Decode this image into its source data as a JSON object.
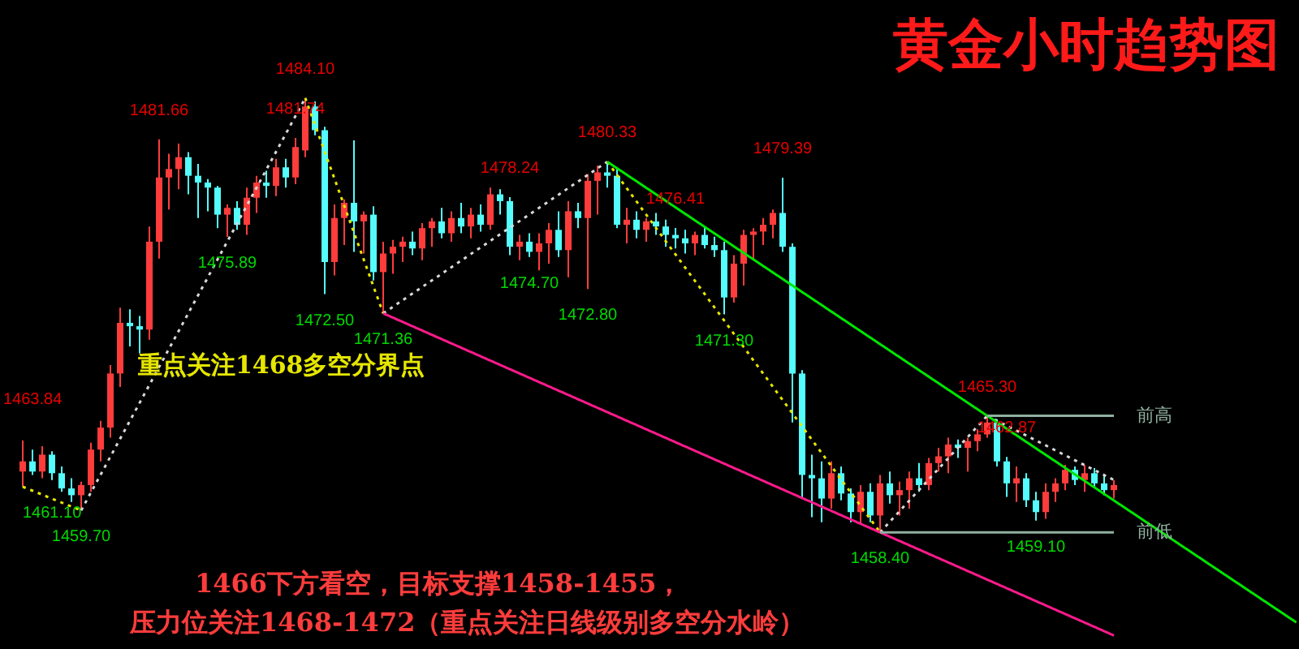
{
  "chart_data": {
    "type": "candlestick",
    "title": "黄金小时趋势图",
    "categories": [
      null,
      null,
      null,
      null,
      null,
      null,
      null,
      null,
      null,
      null,
      null,
      null,
      null,
      null,
      null,
      null,
      null,
      null,
      null,
      null,
      null,
      null,
      null,
      null,
      null,
      null,
      null,
      null,
      null,
      null,
      null,
      null,
      null,
      null,
      null,
      null,
      null,
      null,
      null,
      null,
      null,
      null,
      null,
      null,
      null,
      null,
      null,
      null,
      null,
      null,
      null,
      null,
      null,
      null,
      null,
      null,
      null,
      null,
      null,
      null,
      null,
      null,
      null,
      null,
      null,
      null,
      null,
      null,
      null,
      null,
      null,
      null,
      null,
      null,
      null,
      null,
      null,
      null,
      null,
      null,
      null,
      null,
      null,
      null,
      null,
      null,
      null,
      null,
      null,
      null,
      null,
      null,
      null,
      null,
      null,
      null,
      null,
      null,
      null,
      null,
      null,
      null,
      null,
      null,
      null,
      null,
      null,
      null,
      null,
      null,
      null,
      null,
      null
    ],
    "ohlc": [
      [
        1462.0,
        1463.84,
        1461.1,
        1462.6
      ],
      [
        1462.6,
        1463.3,
        1461.8,
        1462.0
      ],
      [
        1462.0,
        1463.5,
        1461.6,
        1463.0
      ],
      [
        1463.0,
        1463.2,
        1461.5,
        1461.9
      ],
      [
        1461.9,
        1462.3,
        1460.8,
        1461.0
      ],
      [
        1461.0,
        1461.6,
        1460.2,
        1460.6
      ],
      [
        1460.6,
        1461.4,
        1459.7,
        1461.2
      ],
      [
        1461.2,
        1463.7,
        1460.8,
        1463.3
      ],
      [
        1463.3,
        1465.0,
        1462.6,
        1464.6
      ],
      [
        1464.6,
        1468.3,
        1464.0,
        1467.8
      ],
      [
        1467.8,
        1471.7,
        1467.0,
        1470.8
      ],
      [
        1470.8,
        1471.6,
        1469.4,
        1470.6
      ],
      [
        1470.6,
        1471.2,
        1469.0,
        1470.4
      ],
      [
        1470.4,
        1476.5,
        1469.8,
        1475.6
      ],
      [
        1475.6,
        1481.66,
        1474.6,
        1479.4
      ],
      [
        1479.4,
        1480.8,
        1477.5,
        1479.9
      ],
      [
        1479.9,
        1481.4,
        1478.7,
        1480.6
      ],
      [
        1480.6,
        1480.9,
        1478.4,
        1479.5
      ],
      [
        1479.5,
        1480.2,
        1477.0,
        1479.1
      ],
      [
        1479.1,
        1479.3,
        1477.4,
        1478.8
      ],
      [
        1478.8,
        1478.9,
        1476.4,
        1477.2
      ],
      [
        1477.2,
        1477.8,
        1475.89,
        1477.6
      ],
      [
        1477.6,
        1478.0,
        1476.3,
        1476.6
      ],
      [
        1476.6,
        1478.8,
        1476.0,
        1478.2
      ],
      [
        1478.2,
        1479.5,
        1477.3,
        1479.1
      ],
      [
        1479.1,
        1479.8,
        1478.2,
        1478.9
      ],
      [
        1478.9,
        1480.5,
        1478.3,
        1480.0
      ],
      [
        1480.0,
        1480.5,
        1478.8,
        1479.4
      ],
      [
        1479.4,
        1481.74,
        1479.0,
        1481.2
      ],
      [
        1481.0,
        1484.1,
        1480.6,
        1483.6
      ],
      [
        1483.6,
        1483.9,
        1481.9,
        1482.2
      ],
      [
        1482.2,
        1482.4,
        1472.5,
        1474.4
      ],
      [
        1474.4,
        1477.8,
        1473.6,
        1477.0
      ],
      [
        1477.0,
        1478.1,
        1475.4,
        1477.9
      ],
      [
        1477.9,
        1481.6,
        1475.0,
        1476.8
      ],
      [
        1476.8,
        1477.4,
        1474.9,
        1477.2
      ],
      [
        1477.2,
        1477.7,
        1473.3,
        1473.8
      ],
      [
        1473.8,
        1475.6,
        1471.36,
        1474.9
      ],
      [
        1474.9,
        1475.7,
        1473.7,
        1475.3
      ],
      [
        1475.3,
        1475.9,
        1474.4,
        1475.6
      ],
      [
        1475.6,
        1476.2,
        1474.8,
        1475.2
      ],
      [
        1475.2,
        1476.7,
        1474.5,
        1476.4
      ],
      [
        1476.4,
        1477.0,
        1475.3,
        1476.8
      ],
      [
        1476.8,
        1477.6,
        1475.8,
        1476.1
      ],
      [
        1476.1,
        1477.4,
        1475.6,
        1477.0
      ],
      [
        1477.0,
        1477.9,
        1476.1,
        1476.5
      ],
      [
        1476.5,
        1477.6,
        1475.8,
        1477.2
      ],
      [
        1477.2,
        1477.8,
        1476.2,
        1476.6
      ],
      [
        1476.6,
        1478.8,
        1476.3,
        1478.4
      ],
      [
        1478.4,
        1478.7,
        1477.2,
        1478.0
      ],
      [
        1478.0,
        1478.24,
        1474.8,
        1475.3
      ],
      [
        1475.3,
        1476.0,
        1474.5,
        1475.6
      ],
      [
        1475.6,
        1476.1,
        1474.7,
        1475.0
      ],
      [
        1475.0,
        1476.1,
        1473.9,
        1475.5
      ],
      [
        1475.5,
        1476.7,
        1474.3,
        1476.3
      ],
      [
        1476.3,
        1477.4,
        1474.7,
        1475.1
      ],
      [
        1475.1,
        1478.0,
        1473.5,
        1477.4
      ],
      [
        1477.4,
        1477.9,
        1476.4,
        1477.0
      ],
      [
        1477.0,
        1479.6,
        1472.8,
        1479.2
      ],
      [
        1479.2,
        1480.1,
        1477.2,
        1479.7
      ],
      [
        1479.7,
        1480.33,
        1478.8,
        1479.5
      ],
      [
        1479.5,
        1480.0,
        1476.4,
        1476.6
      ],
      [
        1476.6,
        1477.6,
        1475.5,
        1476.9
      ],
      [
        1476.9,
        1477.4,
        1475.8,
        1476.3
      ],
      [
        1476.3,
        1477.0,
        1475.6,
        1476.8
      ],
      [
        1476.8,
        1477.3,
        1476.0,
        1476.5
      ],
      [
        1476.5,
        1476.9,
        1475.3,
        1476.0
      ],
      [
        1476.0,
        1476.41,
        1475.2,
        1475.8
      ],
      [
        1475.8,
        1476.3,
        1474.9,
        1475.5
      ],
      [
        1475.5,
        1476.2,
        1474.8,
        1476.0
      ],
      [
        1476.0,
        1476.5,
        1475.2,
        1475.4
      ],
      [
        1475.4,
        1475.9,
        1474.7,
        1475.1
      ],
      [
        1475.1,
        1475.6,
        1471.3,
        1472.3
      ],
      [
        1472.3,
        1474.8,
        1472.0,
        1474.3
      ],
      [
        1474.3,
        1476.3,
        1473.0,
        1476.0
      ],
      [
        1476.0,
        1476.4,
        1474.6,
        1476.2
      ],
      [
        1476.2,
        1477.0,
        1475.4,
        1476.6
      ],
      [
        1476.6,
        1477.5,
        1475.8,
        1477.3
      ],
      [
        1477.3,
        1479.39,
        1475.0,
        1475.3
      ],
      [
        1475.3,
        1475.5,
        1464.9,
        1467.8
      ],
      [
        1467.8,
        1468.0,
        1460.4,
        1461.8
      ],
      [
        1461.8,
        1463.0,
        1459.3,
        1461.6
      ],
      [
        1461.6,
        1462.6,
        1459.0,
        1460.4
      ],
      [
        1460.4,
        1462.6,
        1459.8,
        1461.9
      ],
      [
        1461.9,
        1462.3,
        1460.3,
        1460.7
      ],
      [
        1460.7,
        1461.0,
        1459.0,
        1459.6
      ],
      [
        1459.6,
        1461.2,
        1458.9,
        1460.8
      ],
      [
        1460.8,
        1461.3,
        1459.0,
        1459.4
      ],
      [
        1459.4,
        1461.8,
        1458.4,
        1461.3
      ],
      [
        1461.3,
        1462.0,
        1460.1,
        1460.6
      ],
      [
        1460.6,
        1461.4,
        1459.4,
        1460.9
      ],
      [
        1460.9,
        1462.0,
        1459.8,
        1461.6
      ],
      [
        1461.6,
        1462.5,
        1460.8,
        1461.2
      ],
      [
        1461.2,
        1462.8,
        1460.9,
        1462.5
      ],
      [
        1462.5,
        1463.4,
        1462.0,
        1462.9
      ],
      [
        1462.9,
        1464.0,
        1461.9,
        1463.6
      ],
      [
        1463.6,
        1463.9,
        1462.8,
        1463.4
      ],
      [
        1463.4,
        1464.0,
        1462.0,
        1463.8
      ],
      [
        1463.8,
        1464.5,
        1463.2,
        1464.2
      ],
      [
        1464.2,
        1465.3,
        1464.0,
        1464.9
      ],
      [
        1464.9,
        1465.1,
        1462.3,
        1462.6
      ],
      [
        1462.6,
        1462.87,
        1460.5,
        1461.3
      ],
      [
        1461.3,
        1462.3,
        1460.2,
        1461.6
      ],
      [
        1461.6,
        1461.9,
        1459.9,
        1460.3
      ],
      [
        1460.3,
        1460.8,
        1459.1,
        1459.6
      ],
      [
        1459.6,
        1461.3,
        1459.2,
        1460.8
      ],
      [
        1460.8,
        1461.6,
        1460.2,
        1461.3
      ],
      [
        1461.3,
        1462.4,
        1460.9,
        1462.1
      ],
      [
        1462.1,
        1462.3,
        1461.2,
        1461.5
      ],
      [
        1461.5,
        1462.4,
        1460.8,
        1461.9
      ],
      [
        1461.9,
        1462.2,
        1461.0,
        1461.3
      ],
      [
        1461.3,
        1461.8,
        1460.6,
        1460.9
      ],
      [
        1460.9,
        1461.5,
        1460.4,
        1461.2
      ]
    ],
    "colors": [
      "#ff3c3c",
      "#54fcfc",
      "#ff3c3c",
      "#54fcfc",
      "#54fcfc",
      "#54fcfc",
      "#ff3c3c",
      "#ff3c3c",
      "#ff3c3c",
      "#ff3c3c",
      "#ff3c3c",
      "#54fcfc",
      "#54fcfc",
      "#ff3c3c",
      "#ff3c3c",
      "#ff3c3c",
      "#ff3c3c",
      "#54fcfc",
      "#54fcfc",
      "#54fcfc",
      "#54fcfc",
      "#ff3c3c",
      "#54fcfc",
      "#ff3c3c",
      "#ff3c3c",
      "#54fcfc",
      "#ff3c3c",
      "#54fcfc",
      "#ff3c3c",
      "#ff3c3c",
      "#54fcfc",
      "#54fcfc",
      "#ff3c3c",
      "#ff3c3c",
      "#54fcfc",
      "#ff3c3c",
      "#54fcfc",
      "#ff3c3c",
      "#ff3c3c",
      "#ff3c3c",
      "#54fcfc",
      "#ff3c3c",
      "#ff3c3c",
      "#54fcfc",
      "#ff3c3c",
      "#54fcfc",
      "#ff3c3c",
      "#54fcfc",
      "#ff3c3c",
      "#54fcfc",
      "#54fcfc",
      "#ff3c3c",
      "#54fcfc",
      "#ff3c3c",
      "#ff3c3c",
      "#54fcfc",
      "#ff3c3c",
      "#54fcfc",
      "#ff3c3c",
      "#ff3c3c",
      "#54fcfc",
      "#54fcfc",
      "#ff3c3c",
      "#54fcfc",
      "#ff3c3c",
      "#54fcfc",
      "#54fcfc",
      "#54fcfc",
      "#54fcfc",
      "#ff3c3c",
      "#54fcfc",
      "#54fcfc",
      "#54fcfc",
      "#ff3c3c",
      "#ff3c3c",
      "#ff3c3c",
      "#ff3c3c",
      "#ff3c3c",
      "#54fcfc",
      "#54fcfc",
      "#54fcfc",
      "#54fcfc",
      "#54fcfc",
      "#ff3c3c",
      "#54fcfc",
      "#54fcfc",
      "#ff3c3c",
      "#54fcfc",
      "#ff3c3c",
      "#54fcfc",
      "#ff3c3c",
      "#ff3c3c",
      "#54fcfc",
      "#ff3c3c",
      "#ff3c3c",
      "#ff3c3c",
      "#54fcfc",
      "#ff3c3c",
      "#ff3c3c",
      "#ff3c3c",
      "#54fcfc",
      "#54fcfc",
      "#ff3c3c",
      "#54fcfc",
      "#54fcfc",
      "#ff3c3c",
      "#ff3c3c",
      "#ff3c3c",
      "#54fcfc",
      "#ff3c3c",
      "#54fcfc",
      "#54fcfc",
      "#ff3c3c"
    ],
    "ref_lines": [
      {
        "axis": "y",
        "value": 1465.3,
        "label": "前高",
        "color": "#8fb0a0"
      },
      {
        "axis": "y",
        "value": 1458.4,
        "label": "前低",
        "color": "#8fb0a0"
      }
    ],
    "ylim": [
      1451.5,
      1489.9
    ],
    "tick_labels": false,
    "annotations": [
      "重点关注1468多空分界点",
      "1466下方看空，目标支撑1458-1455，",
      "压力位关注1468-1472（重点关注日线级别多空分水岭）",
      "1463.84",
      {
        "text": "1461.10",
        "y": 1461.1
      },
      {
        "text": "1459.70",
        "y": 1459.7
      },
      {
        "text": "1481.66",
        "y": 1481.66
      },
      {
        "text": "1475.89",
        "y": 1475.89
      },
      {
        "text": "1481.74",
        "y": 1481.74
      },
      {
        "text": "1484.10",
        "y": 1484.1
      },
      {
        "text": "1472.50",
        "y": 1472.5
      },
      {
        "text": "1471.36",
        "y": 1471.36
      },
      {
        "text": "1478.24",
        "y": 1478.24
      },
      {
        "text": "1472.80",
        "y": 1472.8
      },
      {
        "text": "1480.33",
        "y": 1480.33
      },
      {
        "text": "1476.41",
        "y": 1476.41
      },
      {
        "text": "1474.70",
        "y": 1474.7
      },
      {
        "text": "1471.30",
        "y": 1471.3
      },
      {
        "text": "1479.39",
        "y": 1479.39
      },
      {
        "text": "1458.40",
        "y": 1458.4
      },
      {
        "text": "1465.30",
        "y": 1465.3
      },
      {
        "text": "1462.87",
        "y": 1462.87
      },
      {
        "text": "1459.10",
        "y": 1459.1
      }
    ]
  }
}
